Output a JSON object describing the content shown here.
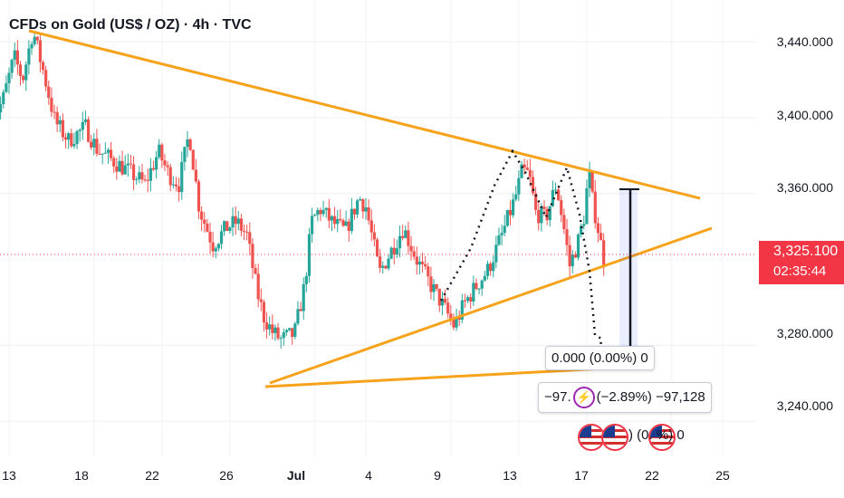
{
  "title": "CFDs on Gold (US$ / OZ) · 4h · TVC",
  "price_tag": {
    "price": "3,325.100",
    "countdown": "02:35:44"
  },
  "callouts": {
    "top": "0.000 (0.00%) 0",
    "mid_left": "−97.",
    "mid_right": "(−2.89%) −97,128",
    "bottom": ") (0. %) 0"
  },
  "colors": {
    "up": "#26a69a",
    "down": "#ef5350",
    "trend": "#f7a21b",
    "price": "#f23645",
    "arrow": "#131722"
  },
  "chart_data": {
    "type": "candlestick",
    "title": "CFDs on Gold (US$ / OZ) · 4h · TVC",
    "y_ticks": [
      "3,440.000",
      "3,400.000",
      "3,360.000",
      "3,280.000",
      "3,240.000"
    ],
    "y_tick_values": [
      3440,
      3400,
      3360,
      3280,
      3240
    ],
    "x_ticks": [
      "13",
      "18",
      "22",
      "26",
      "Jul",
      "4",
      "9",
      "13",
      "17",
      "22",
      "25"
    ],
    "x_tick_days": [
      13,
      18,
      22,
      26,
      31,
      34,
      39,
      43,
      47,
      52,
      55
    ],
    "ylim": [
      3221,
      3462
    ],
    "last_price": 3325.1,
    "anchors": [
      {
        "d": 12.0,
        "p": 3400
      },
      {
        "d": 12.6,
        "p": 3408
      },
      {
        "d": 13.3,
        "p": 3432
      },
      {
        "d": 13.8,
        "p": 3420
      },
      {
        "d": 14.4,
        "p": 3446
      },
      {
        "d": 15.0,
        "p": 3425
      },
      {
        "d": 15.7,
        "p": 3398
      },
      {
        "d": 16.5,
        "p": 3388
      },
      {
        "d": 17.5,
        "p": 3395
      },
      {
        "d": 18.2,
        "p": 3383
      },
      {
        "d": 19.0,
        "p": 3378
      },
      {
        "d": 20.0,
        "p": 3372
      },
      {
        "d": 21.0,
        "p": 3365
      },
      {
        "d": 21.8,
        "p": 3382
      },
      {
        "d": 22.4,
        "p": 3370
      },
      {
        "d": 23.0,
        "p": 3365
      },
      {
        "d": 23.6,
        "p": 3392
      },
      {
        "d": 24.2,
        "p": 3352
      },
      {
        "d": 25.0,
        "p": 3333
      },
      {
        "d": 25.8,
        "p": 3342
      },
      {
        "d": 26.4,
        "p": 3345
      },
      {
        "d": 27.0,
        "p": 3338
      },
      {
        "d": 27.6,
        "p": 3308
      },
      {
        "d": 28.0,
        "p": 3295
      },
      {
        "d": 28.5,
        "p": 3287
      },
      {
        "d": 29.0,
        "p": 3283
      },
      {
        "d": 29.8,
        "p": 3286
      },
      {
        "d": 30.4,
        "p": 3312
      },
      {
        "d": 30.8,
        "p": 3345
      },
      {
        "d": 31.3,
        "p": 3352
      },
      {
        "d": 32.0,
        "p": 3345
      },
      {
        "d": 32.8,
        "p": 3340
      },
      {
        "d": 33.6,
        "p": 3358
      },
      {
        "d": 34.0,
        "p": 3353
      },
      {
        "d": 34.8,
        "p": 3318
      },
      {
        "d": 35.5,
        "p": 3330
      },
      {
        "d": 36.2,
        "p": 3342
      },
      {
        "d": 37.0,
        "p": 3325
      },
      {
        "d": 37.8,
        "p": 3312
      },
      {
        "d": 38.6,
        "p": 3300
      },
      {
        "d": 39.2,
        "p": 3290
      },
      {
        "d": 39.8,
        "p": 3302
      },
      {
        "d": 40.4,
        "p": 3310
      },
      {
        "d": 41.2,
        "p": 3320
      },
      {
        "d": 42.0,
        "p": 3338
      },
      {
        "d": 42.8,
        "p": 3358
      },
      {
        "d": 43.2,
        "p": 3372
      },
      {
        "d": 43.6,
        "p": 3370
      },
      {
        "d": 44.0,
        "p": 3350
      },
      {
        "d": 44.6,
        "p": 3347
      },
      {
        "d": 45.2,
        "p": 3365
      },
      {
        "d": 45.6,
        "p": 3345
      },
      {
        "d": 46.0,
        "p": 3322
      },
      {
        "d": 46.5,
        "p": 3335
      },
      {
        "d": 46.9,
        "p": 3350
      },
      {
        "d": 47.1,
        "p": 3373
      },
      {
        "d": 47.3,
        "p": 3358
      },
      {
        "d": 47.7,
        "p": 3340
      },
      {
        "d": 48.0,
        "p": 3325
      }
    ]
  }
}
